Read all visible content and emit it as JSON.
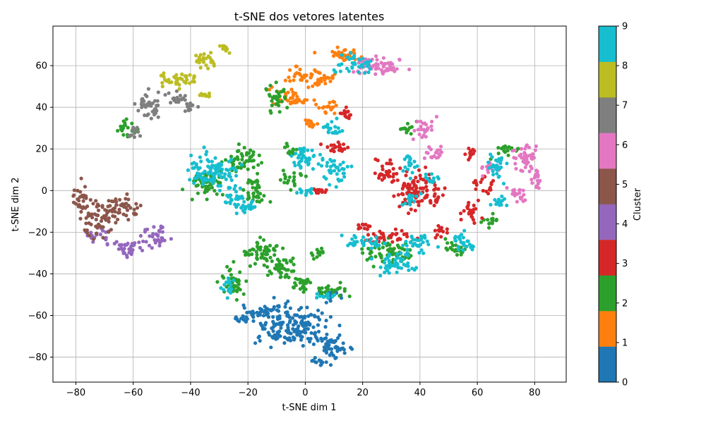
{
  "chart_data": {
    "type": "scatter",
    "title": "t-SNE dos vetores latentes",
    "xlabel": "t-SNE dim 1",
    "ylabel": "t-SNE dim 2",
    "xlim": [
      -88,
      91
    ],
    "ylim": [
      -92,
      79
    ],
    "xticks": [
      -80,
      -60,
      -40,
      -20,
      0,
      20,
      40,
      60,
      80
    ],
    "yticks": [
      -80,
      -60,
      -40,
      -20,
      0,
      20,
      40,
      60
    ],
    "grid": true,
    "colorbar": {
      "label": "Cluster",
      "min": 0,
      "max": 9,
      "ticks": [
        0,
        1,
        2,
        3,
        4,
        5,
        6,
        7,
        8,
        9
      ],
      "colors": [
        "#1f77b4",
        "#ff7f0e",
        "#2ca02c",
        "#d62728",
        "#9467bd",
        "#8c564b",
        "#e377c2",
        "#7f7f7f",
        "#bcbd22",
        "#17becf"
      ]
    },
    "clusters": [
      {
        "cluster": 0,
        "regions": [
          [
            -5,
            -65,
            12,
            9
          ],
          [
            10,
            -75,
            5,
            6
          ],
          [
            -15,
            -58,
            6,
            3
          ],
          [
            4,
            -82,
            3,
            1.5
          ],
          [
            9,
            -50,
            4,
            3
          ],
          [
            -22,
            -62,
            3,
            2
          ]
        ]
      },
      {
        "cluster": 1,
        "regions": [
          [
            2,
            55,
            8,
            4
          ],
          [
            12,
            66,
            6,
            3
          ],
          [
            -5,
            45,
            6,
            4
          ],
          [
            8,
            40,
            4,
            3
          ],
          [
            2,
            32,
            2,
            2
          ]
        ]
      },
      {
        "cluster": 2,
        "regions": [
          [
            -15,
            -30,
            7,
            5
          ],
          [
            -25,
            -45,
            4,
            6
          ],
          [
            -8,
            -38,
            6,
            4
          ],
          [
            -1,
            -45,
            4,
            4
          ],
          [
            10,
            -48,
            5,
            3
          ],
          [
            -34,
            3,
            6,
            6
          ],
          [
            -22,
            15,
            5,
            6
          ],
          [
            -17,
            0,
            4,
            6
          ],
          [
            -5,
            5,
            4,
            3
          ],
          [
            -5,
            20,
            3,
            3
          ],
          [
            -10,
            45,
            4,
            5
          ],
          [
            -62,
            30,
            3,
            4
          ],
          [
            30,
            -30,
            8,
            5
          ],
          [
            35,
            30,
            3,
            3
          ],
          [
            52,
            -28,
            4,
            3
          ],
          [
            70,
            20,
            4,
            3
          ],
          [
            65,
            -15,
            3,
            3
          ],
          [
            4,
            -30,
            2,
            3
          ]
        ]
      },
      {
        "cluster": 3,
        "regions": [
          [
            28,
            9,
            4,
            5
          ],
          [
            38,
            0,
            7,
            8
          ],
          [
            45,
            -5,
            3,
            3
          ],
          [
            30,
            -22,
            7,
            3
          ],
          [
            48,
            -20,
            3,
            3
          ],
          [
            62,
            2,
            3,
            4
          ],
          [
            58,
            -10,
            3,
            5
          ],
          [
            58,
            18,
            2,
            2
          ],
          [
            20,
            -17,
            3,
            2
          ],
          [
            14,
            37,
            2,
            2
          ],
          [
            10,
            20,
            4,
            3
          ],
          [
            5,
            0,
            3,
            2
          ]
        ]
      },
      {
        "cluster": 4,
        "regions": [
          [
            -62,
            -27,
            6,
            4
          ],
          [
            -72,
            -22,
            4,
            3
          ],
          [
            -52,
            -22,
            4,
            5
          ]
        ]
      },
      {
        "cluster": 5,
        "regions": [
          [
            -78,
            -5,
            3,
            7
          ],
          [
            -72,
            -14,
            4,
            7
          ],
          [
            -66,
            -8,
            5,
            5
          ],
          [
            -60,
            -10,
            3,
            3
          ]
        ]
      },
      {
        "cluster": 6,
        "regions": [
          [
            25,
            60,
            7,
            4
          ],
          [
            42,
            30,
            3,
            5
          ],
          [
            45,
            18,
            3,
            4
          ],
          [
            77,
            17,
            4,
            7
          ],
          [
            81,
            7,
            2,
            6
          ],
          [
            74,
            -2,
            4,
            3
          ],
          [
            64,
            10,
            3,
            3
          ],
          [
            30,
            58,
            3,
            1
          ]
        ]
      },
      {
        "cluster": 7,
        "regions": [
          [
            -55,
            40,
            4,
            6
          ],
          [
            -45,
            44,
            4,
            3
          ],
          [
            -60,
            28,
            2,
            3
          ],
          [
            -40,
            40,
            2,
            2
          ]
        ]
      },
      {
        "cluster": 8,
        "regions": [
          [
            -35,
            62,
            4,
            4
          ],
          [
            -42,
            54,
            4,
            4
          ],
          [
            -48,
            53,
            3,
            3
          ],
          [
            -35,
            46,
            2,
            1
          ],
          [
            -28,
            69,
            2,
            2
          ]
        ]
      },
      {
        "cluster": 9,
        "regions": [
          [
            -32,
            10,
            8,
            8
          ],
          [
            -25,
            -3,
            4,
            4
          ],
          [
            -20,
            -8,
            4,
            3
          ],
          [
            0,
            15,
            5,
            5
          ],
          [
            10,
            10,
            4,
            6
          ],
          [
            10,
            30,
            3,
            4
          ],
          [
            0,
            0,
            3,
            2
          ],
          [
            20,
            -25,
            7,
            3
          ],
          [
            32,
            -35,
            6,
            5
          ],
          [
            40,
            -25,
            5,
            4
          ],
          [
            55,
            -25,
            4,
            4
          ],
          [
            37,
            -5,
            3,
            3
          ],
          [
            37,
            12,
            3,
            4
          ],
          [
            67,
            12,
            3,
            6
          ],
          [
            67,
            -5,
            3,
            3
          ],
          [
            18,
            60,
            6,
            4
          ],
          [
            -27,
            -45,
            2,
            5
          ],
          [
            8,
            -50,
            3,
            2
          ],
          [
            44,
            5,
            3,
            2
          ]
        ]
      }
    ]
  }
}
